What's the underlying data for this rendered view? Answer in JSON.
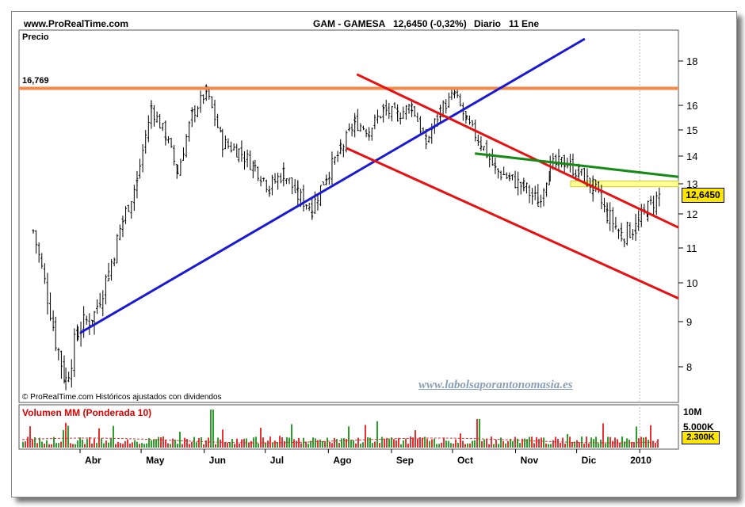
{
  "header": {
    "site": "www.ProRealTime.com",
    "ticker": "GAM - GAMESA",
    "quote": "12,6450 (-0,32%)",
    "period": "Diario",
    "date": "11 Ene"
  },
  "labels": {
    "price_panel": "Precio",
    "resistance_value": "16,769",
    "copyright": "© ProRealTime.com Históricos ajustados con dividendos",
    "watermark": "www.labolsaporantonomasia.es",
    "volume_panel": "Volumen",
    "volume_ma": "MM (Ponderada 10)",
    "last_price_tag": "12,6450",
    "last_volume_tag": "2.300K"
  },
  "colors": {
    "orange_line": "#f4884a",
    "blue_line": "#1a1ad6",
    "red_line": "#e81010",
    "green_line": "#158a15",
    "yellow_band": "#ffff99",
    "tag": "#ffe600",
    "volume_bar": "#e83030",
    "volume_bar_up": "#2aa02a"
  },
  "chart_data": {
    "type": "line",
    "symbol": "GAM - GAMESA",
    "price_axis_ticks": [
      8,
      9,
      10,
      11,
      12,
      13,
      14,
      15,
      16,
      18
    ],
    "price_range": [
      7.5,
      19
    ],
    "x_axis_labels": [
      "Abr",
      "May",
      "Jun",
      "Jul",
      "Ago",
      "Sep",
      "Oct",
      "Nov",
      "Dic",
      "2010"
    ],
    "price_series": [
      {
        "x": "Mar-09",
        "y": 11.5
      },
      {
        "x": "Mar-20",
        "y": 8.6
      },
      {
        "x": "Mar-25",
        "y": 7.7
      },
      {
        "x": "Mar-31",
        "y": 8.8
      },
      {
        "x": "Apr-08",
        "y": 9.2
      },
      {
        "x": "Apr-15",
        "y": 10.3
      },
      {
        "x": "Apr-22",
        "y": 11.8
      },
      {
        "x": "Apr-29",
        "y": 13.1
      },
      {
        "x": "May-06",
        "y": 15.9
      },
      {
        "x": "May-13",
        "y": 14.8
      },
      {
        "x": "May-19",
        "y": 13.4
      },
      {
        "x": "May-26",
        "y": 15.6
      },
      {
        "x": "Jun-02",
        "y": 16.6
      },
      {
        "x": "Jun-10",
        "y": 14.5
      },
      {
        "x": "Jun-18",
        "y": 14.2
      },
      {
        "x": "Jun-26",
        "y": 13.6
      },
      {
        "x": "Jul-03",
        "y": 12.9
      },
      {
        "x": "Jul-10",
        "y": 13.4
      },
      {
        "x": "Jul-17",
        "y": 12.6
      },
      {
        "x": "Jul-24",
        "y": 12.2
      },
      {
        "x": "Jul-31",
        "y": 13.3
      },
      {
        "x": "Aug-07",
        "y": 14.2
      },
      {
        "x": "Aug-14",
        "y": 15.3
      },
      {
        "x": "Aug-21",
        "y": 15.0
      },
      {
        "x": "Aug-28",
        "y": 15.8
      },
      {
        "x": "Sep-04",
        "y": 15.6
      },
      {
        "x": "Sep-11",
        "y": 16.0
      },
      {
        "x": "Sep-18",
        "y": 14.5
      },
      {
        "x": "Sep-25",
        "y": 15.8
      },
      {
        "x": "Oct-02",
        "y": 16.5
      },
      {
        "x": "Oct-08",
        "y": 15.3
      },
      {
        "x": "Oct-15",
        "y": 14.5
      },
      {
        "x": "Oct-22",
        "y": 13.5
      },
      {
        "x": "Oct-29",
        "y": 13.2
      },
      {
        "x": "Nov-05",
        "y": 12.9
      },
      {
        "x": "Nov-12",
        "y": 12.4
      },
      {
        "x": "Nov-18",
        "y": 13.6
      },
      {
        "x": "Nov-25",
        "y": 13.8
      },
      {
        "x": "Dec-02",
        "y": 13.4
      },
      {
        "x": "Dec-09",
        "y": 12.9
      },
      {
        "x": "Dec-16",
        "y": 12.0
      },
      {
        "x": "Dec-23",
        "y": 11.4
      },
      {
        "x": "Dec-30",
        "y": 11.6
      },
      {
        "x": "Jan-05",
        "y": 12.2
      },
      {
        "x": "Jan-11",
        "y": 12.645
      }
    ],
    "lines": [
      {
        "color": "orange",
        "from": {
          "x": "Mar-02",
          "y": 16.769
        },
        "to": {
          "x": "Jan-20",
          "y": 16.769
        }
      },
      {
        "color": "blue",
        "from": {
          "x": "Apr-01",
          "y": 8.75
        },
        "to": {
          "x": "Dec-05",
          "y": 19.0
        }
      },
      {
        "color": "red",
        "from": {
          "x": "Aug-15",
          "y": 17.4
        },
        "to": {
          "x": "Jan-20",
          "y": 11.6
        }
      },
      {
        "color": "red",
        "from": {
          "x": "Aug-10",
          "y": 14.3
        },
        "to": {
          "x": "Jan-20",
          "y": 9.6
        }
      },
      {
        "color": "green",
        "from": {
          "x": "Oct-12",
          "y": 14.1
        },
        "to": {
          "x": "Jan-20",
          "y": 13.25
        }
      }
    ],
    "resistance_band": {
      "from": 12.9,
      "to": 13.1,
      "x_from": "Nov-28",
      "x_to": "Jan-20"
    },
    "volume_axis_ticks": [
      "10M",
      "5.000K"
    ],
    "volume_ma_label": "MM (Ponderada 10)",
    "last_volume": "2.300K",
    "last_price": 12.645
  }
}
